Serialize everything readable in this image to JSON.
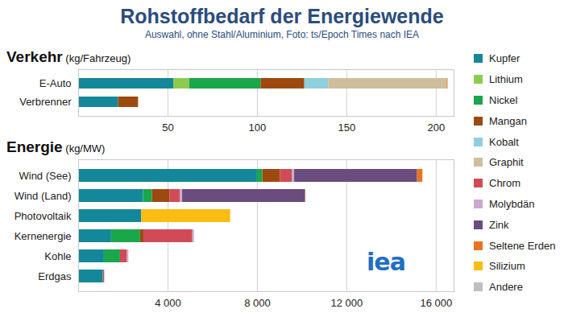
{
  "title": "Rohstoffbedarf der Energiewende",
  "subtitle": "Auswahl, ohne Stahl/Aluminium, Foto: ts/Epoch Times nach IEA",
  "logo": "iea",
  "chart_data": [
    {
      "type": "bar",
      "orientation": "horizontal",
      "stacked": true,
      "grid": true,
      "title": "Verkehr",
      "x_label": "(kg/Fahrzeug)",
      "categories": [
        "E-Auto",
        "Verbrenner"
      ],
      "xlim": [
        0,
        210
      ],
      "xticks": [
        50,
        100,
        150,
        200
      ],
      "series": [
        {
          "name": "Kupfer",
          "color": "#14879a",
          "values": [
            53.2,
            22.3
          ]
        },
        {
          "name": "Lithium",
          "color": "#8dcb4e",
          "values": [
            8.9,
            0
          ]
        },
        {
          "name": "Nickel",
          "color": "#1aa64a",
          "values": [
            39.9,
            0
          ]
        },
        {
          "name": "Mangan",
          "color": "#9c4a10",
          "values": [
            24.5,
            11.2
          ]
        },
        {
          "name": "Kobalt",
          "color": "#8ecfdc",
          "values": [
            13.3,
            0
          ]
        },
        {
          "name": "Graphit",
          "color": "#cdbf9c",
          "values": [
            66.3,
            0
          ]
        },
        {
          "name": "Chrom",
          "color": "#d14b57",
          "values": [
            0,
            0
          ]
        },
        {
          "name": "Molybdän",
          "color": "#c9a9cf",
          "values": [
            0,
            0
          ]
        },
        {
          "name": "Zink",
          "color": "#6b4c7e",
          "values": [
            0,
            0
          ]
        },
        {
          "name": "Seltene Erden",
          "color": "#e8741f",
          "values": [
            0.5,
            0
          ]
        },
        {
          "name": "Silizium",
          "color": "#fbbd12",
          "values": [
            0,
            0
          ]
        },
        {
          "name": "Andere",
          "color": "#bfbfbf",
          "values": [
            0,
            0
          ]
        }
      ]
    },
    {
      "type": "bar",
      "orientation": "horizontal",
      "stacked": true,
      "grid": true,
      "title": "Energie",
      "x_label": "(kg/MW)",
      "categories": [
        "Wind (See)",
        "Wind (Land)",
        "Photovoltaik",
        "Kernenergie",
        "Kohle",
        "Erdgas"
      ],
      "xlim": [
        0,
        16800
      ],
      "xticks": [
        {
          "value": 4000,
          "label": "4 000"
        },
        {
          "value": 8000,
          "label": "8 000"
        },
        {
          "value": 12000,
          "label": "12 000"
        },
        {
          "value": 16000,
          "label": "16 000"
        }
      ],
      "series": [
        {
          "name": "Kupfer",
          "color": "#14879a",
          "values": [
            8000,
            2900,
            2822,
            1473,
            1150,
            1100
          ]
        },
        {
          "name": "Lithium",
          "color": "#8dcb4e",
          "values": [
            0,
            0,
            0,
            0,
            0,
            0
          ]
        },
        {
          "name": "Nickel",
          "color": "#1aa64a",
          "values": [
            240,
            404,
            0,
            1297,
            721,
            16
          ]
        },
        {
          "name": "Mangan",
          "color": "#9c4a10",
          "values": [
            790,
            780,
            0,
            148,
            0,
            0
          ]
        },
        {
          "name": "Kobalt",
          "color": "#8ecfdc",
          "values": [
            0,
            0,
            0,
            0,
            0,
            0
          ]
        },
        {
          "name": "Graphit",
          "color": "#cdbf9c",
          "values": [
            0,
            0,
            0,
            0,
            0,
            0
          ]
        },
        {
          "name": "Chrom",
          "color": "#d14b57",
          "values": [
            525,
            470,
            0,
            2190,
            308,
            48
          ]
        },
        {
          "name": "Molybdän",
          "color": "#c9a9cf",
          "values": [
            109,
            99,
            0,
            70,
            66,
            0
          ]
        },
        {
          "name": "Zink",
          "color": "#6b4c7e",
          "values": [
            5500,
            5500,
            0,
            0,
            0,
            0
          ]
        },
        {
          "name": "Seltene Erden",
          "color": "#e8741f",
          "values": [
            239,
            14,
            0,
            0,
            0,
            0
          ]
        },
        {
          "name": "Silizium",
          "color": "#fbbd12",
          "values": [
            0,
            0,
            3980,
            0,
            0,
            0
          ]
        },
        {
          "name": "Andere",
          "color": "#bfbfbf",
          "values": [
            0,
            0,
            0,
            0,
            0,
            0
          ]
        }
      ]
    }
  ]
}
